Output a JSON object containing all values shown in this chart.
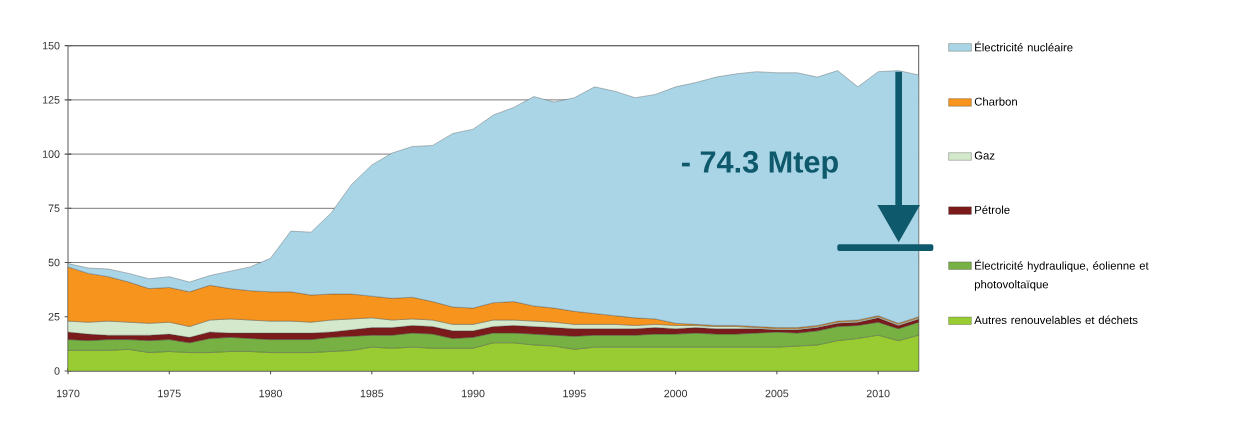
{
  "chart_data": {
    "type": "area",
    "stacked": true,
    "x": [
      1970,
      1971,
      1972,
      1973,
      1974,
      1975,
      1976,
      1977,
      1978,
      1979,
      1980,
      1981,
      1982,
      1983,
      1984,
      1985,
      1986,
      1987,
      1988,
      1989,
      1990,
      1991,
      1992,
      1993,
      1994,
      1995,
      1996,
      1997,
      1998,
      1999,
      2000,
      2001,
      2002,
      2003,
      2004,
      2005,
      2006,
      2007,
      2008,
      2009,
      2010,
      2011,
      2012
    ],
    "series": [
      {
        "name": "Autres renouvelables et déchets",
        "color": "#99cc33",
        "values": [
          9.5,
          9.5,
          9.5,
          10,
          8.5,
          9,
          8.5,
          8.5,
          9,
          9,
          8.5,
          8.5,
          8.5,
          9,
          9.5,
          11,
          10.5,
          11,
          10.5,
          10.5,
          10.5,
          13,
          13,
          12,
          11.5,
          10,
          11,
          11,
          11,
          11,
          11,
          11,
          11,
          11,
          11,
          11,
          11.5,
          12,
          14,
          15,
          16.5,
          14,
          16.5
        ]
      },
      {
        "name": "Électricité hydraulique, éolienne et photovoltaïque",
        "color": "#77b043",
        "values": [
          5,
          4.5,
          5,
          4.5,
          5.5,
          5.5,
          4.5,
          6.5,
          6.5,
          6,
          6,
          6,
          6,
          6.5,
          6.5,
          5.5,
          6,
          6.5,
          6.5,
          4.5,
          5,
          4.5,
          4.5,
          5,
          5,
          6,
          5.5,
          5.5,
          5.5,
          6,
          6,
          6.5,
          6,
          6,
          6.5,
          7,
          6,
          6.5,
          6.5,
          6,
          6,
          5.5,
          6
        ]
      },
      {
        "name": "Pétrole",
        "color": "#7b1a1a",
        "values": [
          3.5,
          3,
          2,
          2,
          2.5,
          2.5,
          2.5,
          3,
          2,
          2.5,
          3,
          3,
          3,
          2.5,
          3,
          3.5,
          3.5,
          3.5,
          3.5,
          3.5,
          3,
          3,
          3.5,
          3.5,
          3.5,
          3.5,
          3,
          3,
          3,
          3,
          2.5,
          2.5,
          2.5,
          2.5,
          2,
          1,
          1.5,
          1.5,
          1.5,
          1.5,
          2,
          1.5,
          1.5
        ]
      },
      {
        "name": "Gaz",
        "color": "#d4e9cc",
        "values": [
          5,
          5.5,
          6.5,
          6,
          5.5,
          5.5,
          5,
          5.5,
          6.5,
          6,
          5.5,
          5.5,
          5,
          5.5,
          5,
          4.5,
          3.5,
          3,
          3,
          3,
          3,
          3,
          2.5,
          2.5,
          2.5,
          2,
          2,
          2,
          1.5,
          1.5,
          1.5,
          1,
          1,
          1,
          0.5,
          0.5,
          0.5,
          0.5,
          0.5,
          0.5,
          0.5,
          0.5,
          0.5
        ]
      },
      {
        "name": "Charbon",
        "color": "#f7941d",
        "values": [
          25,
          22.5,
          20.5,
          18.5,
          16,
          16,
          16,
          16,
          14,
          13.5,
          13.5,
          13.5,
          12.5,
          12,
          11.5,
          10,
          10,
          10,
          8.5,
          8,
          7.5,
          8,
          8.5,
          7,
          6.5,
          6,
          5,
          4,
          3.5,
          2.5,
          1,
          0.5,
          0.5,
          0.5,
          0.5,
          0.5,
          0.5,
          0.5,
          0.5,
          0.5,
          0.5,
          0.5,
          0.5
        ]
      },
      {
        "name": "Électricité nucléaire",
        "color": "#aad5e6",
        "values": [
          1.5,
          2.5,
          3.5,
          4,
          4.5,
          5,
          4.5,
          4.5,
          8,
          11,
          15.5,
          28,
          29,
          37.5,
          50.5,
          60.5,
          67,
          69.5,
          72,
          80,
          82.5,
          86.5,
          89.5,
          96.5,
          95,
          98.5,
          104.5,
          103.5,
          101.5,
          103.5,
          109,
          111.5,
          114.5,
          116,
          117.5,
          117.5,
          117.5,
          114.5,
          115.5,
          107.5,
          112.5,
          116.5,
          111.5
        ]
      }
    ],
    "xlim": [
      1970,
      2012
    ],
    "xticks": [
      1970,
      1975,
      1980,
      1985,
      1990,
      1995,
      2000,
      2005,
      2010
    ],
    "ylim": [
      0,
      150
    ],
    "yticks": [
      0,
      25,
      50,
      75,
      100,
      125,
      150
    ],
    "grid": "y",
    "legend": "right",
    "annotations": [
      "- 74.3 Mtep"
    ]
  }
}
